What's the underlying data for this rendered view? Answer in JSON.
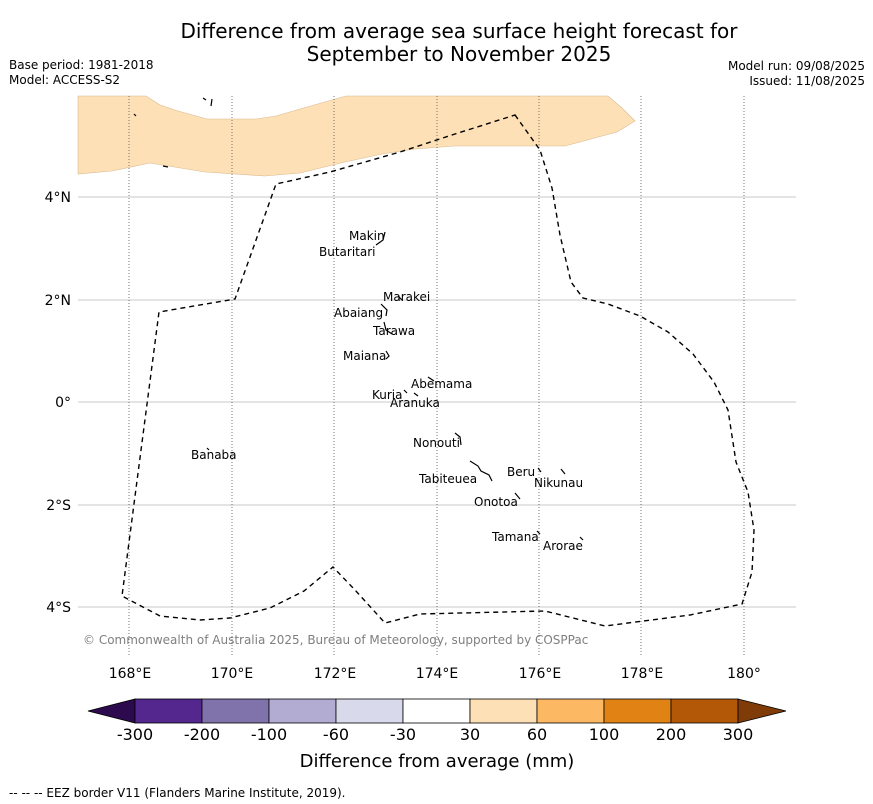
{
  "title_line1": "Difference from average sea surface height forecast for",
  "title_line2": "September to November 2025",
  "meta": {
    "base_period": "Base period: 1981-2018",
    "model": "Model: ACCESS-S2",
    "model_run": "Model run: 09/08/2025",
    "issued": "Issued: 11/08/2025"
  },
  "lat_ticks": [
    "4°N",
    "2°N",
    "0°",
    "2°S",
    "4°S"
  ],
  "lon_ticks": [
    "168°E",
    "170°E",
    "172°E",
    "174°E",
    "176°E",
    "178°E",
    "180°"
  ],
  "places": [
    {
      "name": "Makin"
    },
    {
      "name": "Butaritari"
    },
    {
      "name": "Marakei"
    },
    {
      "name": "Abaiang"
    },
    {
      "name": "Tarawa"
    },
    {
      "name": "Maiana"
    },
    {
      "name": "Abemama"
    },
    {
      "name": "Kuria"
    },
    {
      "name": "Aranuka"
    },
    {
      "name": "Nonouti"
    },
    {
      "name": "Banaba"
    },
    {
      "name": "Beru"
    },
    {
      "name": "Nikunau"
    },
    {
      "name": "Tabiteuea"
    },
    {
      "name": "Onotoa"
    },
    {
      "name": "Tamana"
    },
    {
      "name": "Arorae"
    }
  ],
  "copyright": "© Commonwealth of Australia 2025, Bureau of Meteorology, supported by COSPPac",
  "colorbar": {
    "title": "Difference from average (mm)",
    "ticks": [
      "-300",
      "-200",
      "-100",
      "-60",
      "-30",
      "30",
      "60",
      "100",
      "200",
      "300"
    ],
    "colors": {
      "below": "#2d0a4e",
      "lt_300_200": "#54278f",
      "lt_200_100": "#8073ac",
      "lt_100_60": "#b2abd2",
      "lt_60_30": "#d8daeb",
      "neutral": "#ffffff",
      "gt_30_60": "#fee0b6",
      "gt_60_100": "#fdb863",
      "gt_100_200": "#e08214",
      "gt_200_300": "#b35806",
      "above": "#7f3b08"
    }
  },
  "map_fill_color": "#fee0b6",
  "footer": "-- -- -- EEZ border V11 (Flanders Marine Institute, 2019)."
}
